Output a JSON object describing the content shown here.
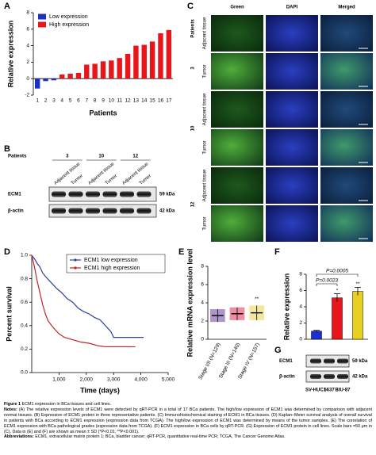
{
  "panel_labels": [
    "A",
    "B",
    "C",
    "D",
    "E",
    "F",
    "G"
  ],
  "chart_data": [
    {
      "type": "bar",
      "x_label": "Patients",
      "y_label": "Relative expression",
      "categories": [
        "1",
        "2",
        "3",
        "4",
        "5",
        "6",
        "7",
        "8",
        "9",
        "10",
        "11",
        "12",
        "13",
        "14",
        "15",
        "16",
        "17"
      ],
      "series": [
        {
          "name": "Low expression",
          "color": "#1f2fbf",
          "values": [
            -1.2,
            -0.3,
            -0.2,
            null,
            null,
            null,
            null,
            null,
            null,
            null,
            null,
            null,
            null,
            null,
            null,
            null,
            null
          ]
        },
        {
          "name": "High expression",
          "color": "#e8151b",
          "values": [
            null,
            null,
            null,
            0.5,
            0.6,
            0.7,
            1.7,
            1.8,
            2.1,
            2.2,
            2.5,
            3.0,
            4.0,
            4.1,
            4.5,
            5.5,
            5.9
          ]
        }
      ],
      "ylim": [
        -2,
        8
      ],
      "yticks": [
        -2,
        0,
        2,
        4,
        6,
        8
      ],
      "legend": "upper left"
    },
    {
      "type": "line",
      "x_label": "Time (days)",
      "y_label": "Percent survival",
      "series": [
        {
          "name": "ECM1 low expression",
          "color": "#2a3fa8",
          "x": [
            0,
            100,
            200,
            300,
            400,
            500,
            700,
            900,
            1100,
            1300,
            1500,
            1700,
            1900,
            2100,
            2300,
            2500,
            2700,
            2900,
            3000,
            3500,
            4100
          ],
          "values": [
            1,
            0.97,
            0.93,
            0.9,
            0.85,
            0.82,
            0.77,
            0.72,
            0.68,
            0.63,
            0.6,
            0.55,
            0.52,
            0.5,
            0.47,
            0.45,
            0.4,
            0.35,
            0.3,
            0.3,
            0.3
          ]
        },
        {
          "name": "ECM1 high expression",
          "color": "#c0242a",
          "x": [
            0,
            100,
            200,
            300,
            400,
            500,
            600,
            800,
            1000,
            1200,
            1500,
            1800,
            2100,
            2400,
            2700,
            3000,
            3500,
            3800
          ],
          "values": [
            1,
            0.9,
            0.78,
            0.68,
            0.58,
            0.5,
            0.44,
            0.38,
            0.33,
            0.3,
            0.28,
            0.26,
            0.25,
            0.23,
            0.22,
            0.22,
            0.22,
            0.22
          ]
        }
      ],
      "xlim": [
        0,
        5000
      ],
      "xticks": [
        {
          "value": 1000,
          "label": "1,000"
        },
        {
          "value": 2000,
          "label": "2,000"
        },
        {
          "value": 3000,
          "label": "3,000"
        },
        {
          "value": 4000,
          "label": "4,000"
        },
        {
          "value": 5000,
          "label": "5,000"
        }
      ],
      "ylim": [
        0,
        1
      ],
      "yticks": [
        {
          "value": 0,
          "label": "0.0"
        },
        {
          "value": 0.2,
          "label": "0.2"
        },
        {
          "value": 0.4,
          "label": "0.4"
        },
        {
          "value": 0.6,
          "label": "0.6"
        },
        {
          "value": 0.8,
          "label": "0.8"
        },
        {
          "value": 1,
          "label": "1.0"
        }
      ],
      "legend": "upper right"
    },
    {
      "type": "strip",
      "y_label": "Relative mRNA expression level",
      "categories": [
        "Stage I/II (N=129)",
        "Stage III (N=140)",
        "Stage IV (N=157)"
      ],
      "colors": [
        "#6b3fa0",
        "#e0305a",
        "#e8d44a"
      ],
      "values": [
        2.6,
        2.8,
        2.9
      ],
      "errors": [
        0.7,
        0.7,
        0.8
      ],
      "significance": [
        null,
        null,
        "**"
      ],
      "ylim": [
        0,
        8
      ],
      "yticks": [
        0,
        2,
        4,
        6,
        8
      ]
    },
    {
      "type": "bar",
      "y_label": "Relative expression",
      "values": [
        1,
        5.1,
        5.9
      ],
      "errors": [
        0.1,
        0.5,
        0.5
      ],
      "colors": [
        "#1a2fd0",
        "#e8151b",
        "#e8d020"
      ],
      "significance": [
        null,
        "*",
        "**"
      ],
      "comparisons": [
        "P=0.0023",
        "P=0.0005"
      ],
      "ylim": [
        0,
        8
      ],
      "yticks": [
        0,
        2,
        4,
        6,
        8
      ]
    }
  ],
  "blot_b": {
    "patients_label": "Patients",
    "patients": [
      "3",
      "10",
      "12"
    ],
    "lanes": [
      "Adjacent tissue",
      "Tumor",
      "Adjacent tissue",
      "Tumor",
      "Adjacent tissue",
      "Tumor"
    ],
    "bands": [
      "ECM1",
      "β-actin"
    ],
    "sizes": [
      "59 kDa",
      "42 kDa"
    ]
  },
  "ihc_c": {
    "columns": [
      "Green",
      "DAPI",
      "Merged"
    ],
    "patients_label": "Patients",
    "patients": [
      "3",
      "10",
      "12"
    ],
    "rows": [
      "Adjacent tissue",
      "Tumor",
      "Adjacent tissue",
      "Tumor",
      "Adjacent tissue",
      "Tumor"
    ]
  },
  "blot_g": {
    "bands": [
      "ECM1",
      "β-actin"
    ],
    "sizes": [
      "59 kDa",
      "42 kDa"
    ],
    "lanes": [
      "SV-HUC1",
      "5637",
      "BIU-87"
    ]
  },
  "caption": {
    "label": "Figure 1",
    "title": "ECM1 expression in BCa tissues and cell lines.",
    "notes_label": "Notes:",
    "notes": "(A) The relative expression levels of ECM1 were detected by qRT-PCR in a total of 17 BCa patients. The high/low expression of ECM1 was determined by comparison with adjacent normal tissues. (B) Expression of ECM1 protein in three representative patients. (C) Immunohistochemical staining of ECM1 in BCa tissues. (D) Kaplan–Meier survival analysis of overall survival in patients with BCa according to ECM1 expression (expression data from TCGA). The high/low expression of ECM1 was determined by means of the tumor samples. (E) The correlation of ECM1 expression with BCa pathological grades (expression data from TCGA). (F) ECM1 expression in BCa cells by qRT-PCR. (G) Expression of ECM1 protein in cell lines. Scale bars =50 μm in (C). Data in (E) and (F) are shown as mean ± SD (*P<0.01, **P<0.001).",
    "abbr_label": "Abbreviations:",
    "abbr": "ECM1, extracellular matrix protein 1; BCa, bladder cancer; qRT-PCR, quantitative real-time PCR; TCGA, The Cancer Genome Atlas."
  }
}
